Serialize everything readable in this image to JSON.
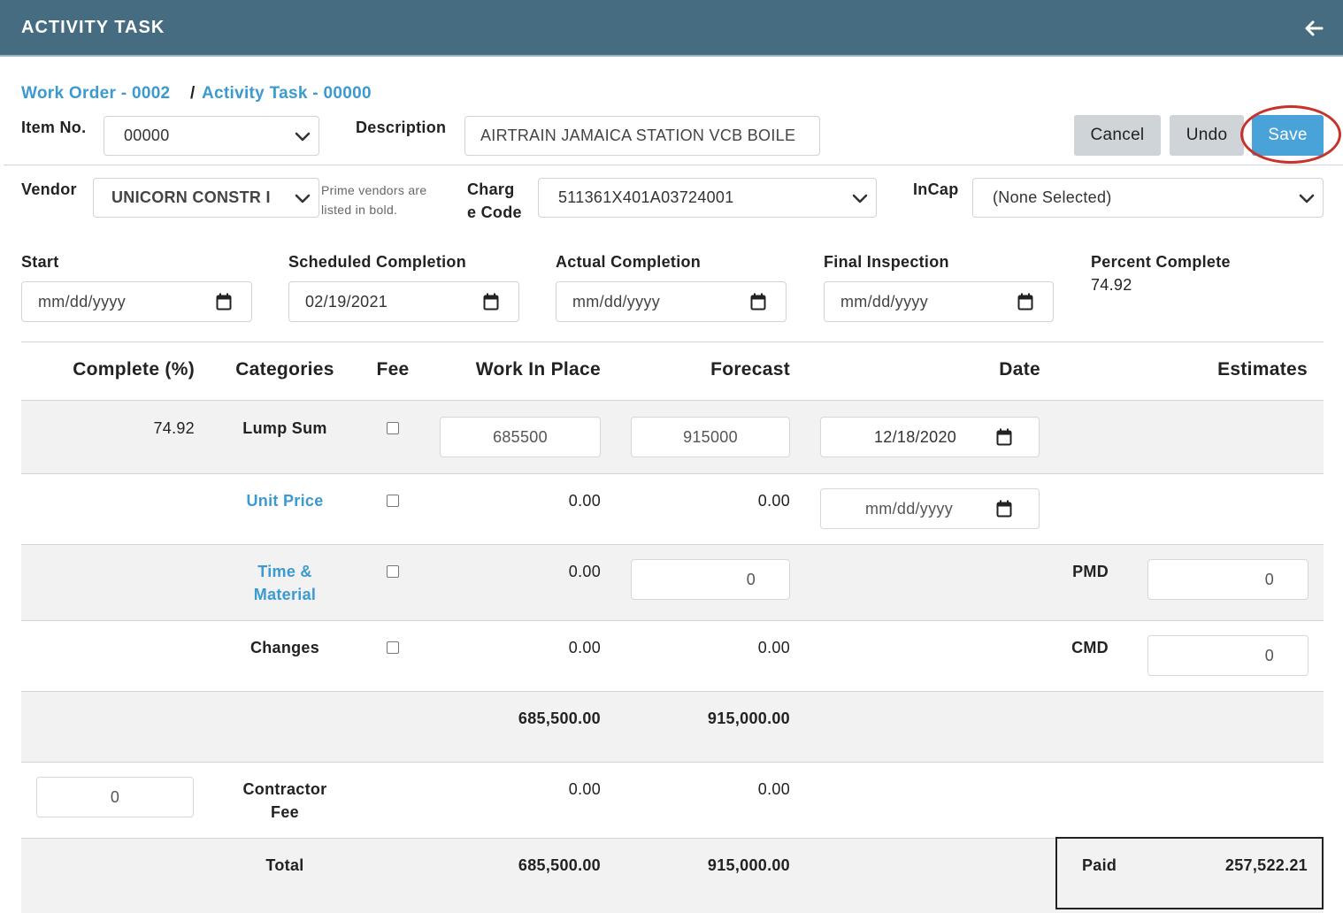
{
  "header": {
    "title": "ACTIVITY TASK",
    "back_icon": "arrow-left-icon"
  },
  "breadcrumb": {
    "work_order": "Work Order - 0002",
    "separator": "/",
    "activity_task": "Activity Task - 00000"
  },
  "form": {
    "item_no": {
      "label": "Item No.",
      "value": "00000"
    },
    "description": {
      "label": "Description",
      "value": "AIRTRAIN JAMAICA STATION VCB BOILE"
    },
    "vendor": {
      "label": "Vendor",
      "value": "UNICORN CONSTR I",
      "hint": "Prime vendors are listed in bold."
    },
    "charge_code": {
      "label_line1": "Charg",
      "label_line2": "e Code",
      "value": "511361X401A03724001"
    },
    "incap": {
      "label": "InCap",
      "value": "(None Selected)"
    },
    "start": {
      "label": "Start",
      "value": "mm/dd/yyyy"
    },
    "scheduled_completion": {
      "label": "Scheduled Completion",
      "value": "02/19/2021"
    },
    "actual_completion": {
      "label": "Actual Completion",
      "value": "mm/dd/yyyy"
    },
    "final_inspection": {
      "label": "Final Inspection",
      "value": "mm/dd/yyyy"
    },
    "percent_complete": {
      "label": "Percent Complete",
      "value": "74.92"
    }
  },
  "buttons": {
    "cancel": "Cancel",
    "undo": "Undo",
    "save": "Save"
  },
  "table": {
    "headers": {
      "complete": "Complete (%)",
      "categories": "Categories",
      "fee": "Fee",
      "work_in_place": "Work In Place",
      "forecast": "Forecast",
      "date": "Date",
      "estimates": "Estimates"
    },
    "lump_sum": {
      "complete": "74.92",
      "category": "Lump Sum",
      "wip": "685500",
      "forecast": "915000",
      "date": "12/18/2020"
    },
    "unit_price": {
      "category": "Unit Price",
      "wip": "0.00",
      "forecast": "0.00",
      "date": "mm/dd/yyyy"
    },
    "time_material": {
      "category_line1": "Time &",
      "category_line2": "Material",
      "wip": "0.00",
      "forecast": "0",
      "est_label": "PMD",
      "est_value": "0"
    },
    "changes": {
      "category": "Changes",
      "wip": "0.00",
      "forecast": "0.00",
      "est_label": "CMD",
      "est_value": "0"
    },
    "subtotal": {
      "wip": "685,500.00",
      "forecast": "915,000.00"
    },
    "contractor_fee": {
      "complete": "0",
      "category_line1": "Contractor",
      "category_line2": "Fee",
      "wip": "0.00",
      "forecast": "0.00"
    },
    "total": {
      "category": "Total",
      "wip": "685,500.00",
      "forecast": "915,000.00",
      "paid_label": "Paid",
      "paid_value": "257,522.21"
    }
  }
}
